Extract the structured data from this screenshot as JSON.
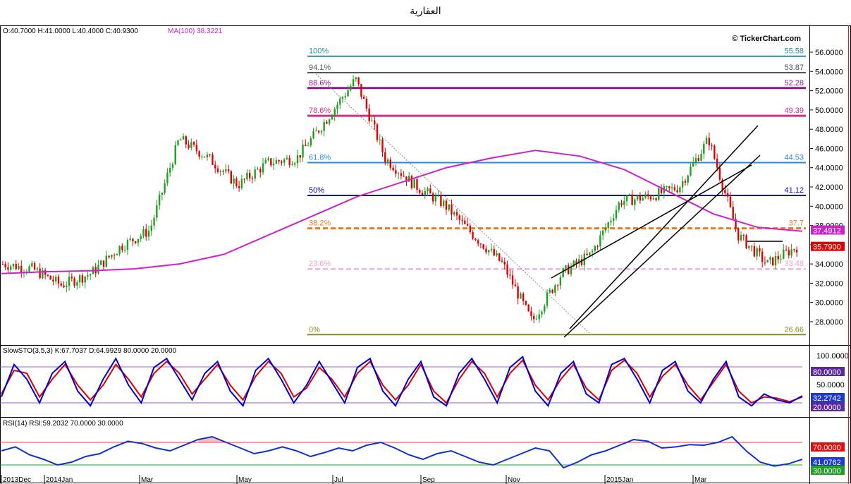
{
  "page": {
    "title": "العقارية"
  },
  "header": {
    "ohlc": "O:40.7000 H:41.0000 L:40.4000 C:40.9300",
    "ma": "MA(100) 38.3221"
  },
  "watermark": "© TickerChart.com",
  "colors": {
    "up": "#20a020",
    "down": "#e00000",
    "ma": "#cc22cc",
    "sto_k": "#0000cc",
    "sto_d": "#dd0000",
    "rsi": "#1030d0"
  },
  "chart_data": [
    {
      "type": "candlestick",
      "y_range": [
        26,
        57.5
      ],
      "y_ticks": [
        "56.0000",
        "54.0000",
        "52.0000",
        "50.0000",
        "48.0000",
        "46.0000",
        "44.0000",
        "42.0000",
        "40.0000",
        "38.0000",
        "36.0000",
        "34.0000",
        "32.0000",
        "30.0000",
        "28.0000"
      ],
      "x_ticks": [
        "2013Dec",
        "2014Jan",
        "Mar",
        "May",
        "Jul",
        "Sep",
        "Nov",
        "2015Jan",
        "Mar"
      ],
      "series": [
        {
          "name": "MA(100)",
          "values": [
            33.0,
            33.2,
            33.3,
            33.5,
            34.0,
            35.0,
            37.0,
            39.0,
            41.0,
            42.5,
            44.0,
            45.0,
            45.8,
            45.2,
            43.8,
            41.5,
            39.2,
            37.8,
            37.4
          ]
        },
        {
          "name": "price_close_approx",
          "values": [
            34,
            33.5,
            31.8,
            33,
            35.8,
            37.5,
            47,
            45,
            42.2,
            44.5,
            45,
            49,
            53.2,
            45,
            42.2,
            40.2,
            37,
            34,
            28,
            33,
            35,
            40.5,
            41,
            42,
            47,
            37,
            34,
            35.8
          ]
        }
      ],
      "fibonacci": [
        {
          "label": "100%",
          "value": "55.58",
          "color": "#2a8fa0"
        },
        {
          "label": "94.1%",
          "value": "53.87",
          "color": "#555555"
        },
        {
          "label": "88.6%",
          "value": "52.28",
          "color": "#8a1a8a"
        },
        {
          "label": "78.6%",
          "value": "49.39",
          "color": "#d0308a"
        },
        {
          "label": "61.8%",
          "value": "44.53",
          "color": "#2a8ad0"
        },
        {
          "label": "50%",
          "value": "41.12",
          "color": "#1010a0"
        },
        {
          "label": "38.2%",
          "value": "37.7",
          "color": "#f07820"
        },
        {
          "label": "23.6%",
          "value": "33.48",
          "color": "#f0a0d0"
        },
        {
          "label": "0%",
          "value": "26.66",
          "color": "#8a8a20"
        }
      ],
      "price_labels": [
        {
          "text": "37.4912",
          "color": "#cc22cc"
        },
        {
          "text": "35.7900",
          "color": "#dd0000"
        }
      ]
    },
    {
      "type": "line",
      "label": "SlowSTO(3,5,3) K:67.7037 D:64.9929 80.0000 20.0000",
      "y_range": [
        0,
        110
      ],
      "y_ticks": [
        "100.0000",
        "50.0000"
      ],
      "levels": [
        "80.0000",
        "20.0000"
      ],
      "last_value": "32.2742",
      "series": [
        {
          "name": "K",
          "values": [
            30,
            85,
            60,
            20,
            70,
            90,
            40,
            15,
            60,
            95,
            50,
            20,
            80,
            95,
            60,
            25,
            70,
            90,
            40,
            15,
            75,
            95,
            60,
            20,
            50,
            90,
            55,
            20,
            80,
            95,
            40,
            15,
            60,
            90,
            30,
            15,
            70,
            95,
            60,
            20,
            80,
            98,
            40,
            15,
            70,
            90,
            35,
            20,
            85,
            95,
            60,
            20,
            75,
            90,
            40,
            20,
            60,
            90,
            30,
            15,
            35,
            25,
            20,
            32
          ]
        },
        {
          "name": "D",
          "values": [
            35,
            75,
            70,
            30,
            60,
            85,
            50,
            25,
            50,
            85,
            60,
            30,
            70,
            90,
            70,
            35,
            60,
            85,
            50,
            25,
            65,
            90,
            70,
            30,
            45,
            80,
            60,
            30,
            70,
            90,
            50,
            25,
            50,
            85,
            40,
            20,
            60,
            90,
            70,
            30,
            70,
            92,
            50,
            25,
            60,
            85,
            45,
            25,
            75,
            92,
            70,
            30,
            65,
            85,
            50,
            25,
            55,
            85,
            40,
            20,
            30,
            28,
            22,
            30
          ]
        }
      ]
    },
    {
      "type": "line",
      "label": "RSI(14) RSI:59.2032 70.0000 30.0000",
      "y_range": [
        15,
        100
      ],
      "levels": [
        "70.0000",
        "30.0000"
      ],
      "last_value": "41.0762",
      "series": [
        {
          "name": "RSI",
          "values": [
            55,
            62,
            48,
            40,
            30,
            35,
            45,
            50,
            62,
            72,
            68,
            60,
            55,
            65,
            75,
            80,
            70,
            60,
            50,
            55,
            62,
            55,
            45,
            52,
            60,
            55,
            65,
            70,
            60,
            48,
            40,
            50,
            55,
            45,
            35,
            30,
            40,
            50,
            60,
            55,
            25,
            35,
            48,
            55,
            65,
            75,
            72,
            60,
            62,
            66,
            65,
            70,
            80,
            55,
            35,
            28,
            32,
            40
          ]
        }
      ]
    }
  ]
}
